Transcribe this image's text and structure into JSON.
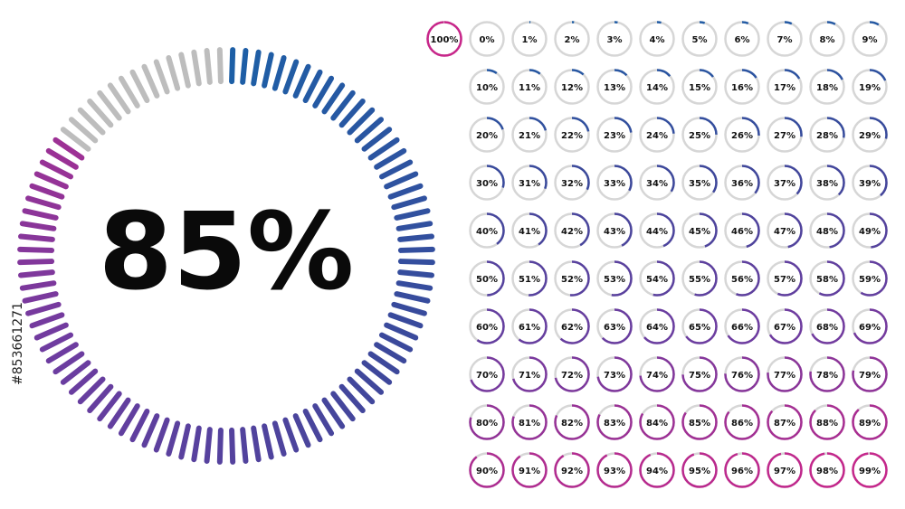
{
  "main": {
    "label": "85%",
    "value": 85
  },
  "stock_id": "#853661271",
  "dials": {
    "labels": [
      "100%",
      "0%",
      "1%",
      "2%",
      "3%",
      "4%",
      "5%",
      "6%",
      "7%",
      "8%",
      "9%",
      "10%",
      "11%",
      "12%",
      "13%",
      "14%",
      "15%",
      "16%",
      "17%",
      "18%",
      "19%",
      "20%",
      "21%",
      "22%",
      "23%",
      "24%",
      "25%",
      "26%",
      "27%",
      "28%",
      "29%",
      "30%",
      "31%",
      "32%",
      "33%",
      "34%",
      "35%",
      "36%",
      "37%",
      "38%",
      "39%",
      "40%",
      "41%",
      "42%",
      "43%",
      "44%",
      "45%",
      "46%",
      "47%",
      "48%",
      "49%",
      "50%",
      "51%",
      "52%",
      "53%",
      "54%",
      "55%",
      "56%",
      "57%",
      "58%",
      "59%",
      "60%",
      "61%",
      "62%",
      "63%",
      "64%",
      "65%",
      "66%",
      "67%",
      "68%",
      "69%",
      "70%",
      "71%",
      "72%",
      "73%",
      "74%",
      "75%",
      "76%",
      "77%",
      "78%",
      "79%",
      "80%",
      "81%",
      "82%",
      "83%",
      "84%",
      "85%",
      "86%",
      "87%",
      "88%",
      "89%",
      "90%",
      "91%",
      "92%",
      "93%",
      "94%",
      "95%",
      "96%",
      "97%",
      "98%",
      "99%"
    ],
    "values": [
      100,
      0,
      1,
      2,
      3,
      4,
      5,
      6,
      7,
      8,
      9,
      10,
      11,
      12,
      13,
      14,
      15,
      16,
      17,
      18,
      19,
      20,
      21,
      22,
      23,
      24,
      25,
      26,
      27,
      28,
      29,
      30,
      31,
      32,
      33,
      34,
      35,
      36,
      37,
      38,
      39,
      40,
      41,
      42,
      43,
      44,
      45,
      46,
      47,
      48,
      49,
      50,
      51,
      52,
      53,
      54,
      55,
      56,
      57,
      58,
      59,
      60,
      61,
      62,
      63,
      64,
      65,
      66,
      67,
      68,
      69,
      70,
      71,
      72,
      73,
      74,
      75,
      76,
      77,
      78,
      79,
      80,
      81,
      82,
      83,
      84,
      85,
      86,
      87,
      88,
      89,
      90,
      91,
      92,
      93,
      94,
      95,
      96,
      97,
      98,
      99
    ]
  }
}
